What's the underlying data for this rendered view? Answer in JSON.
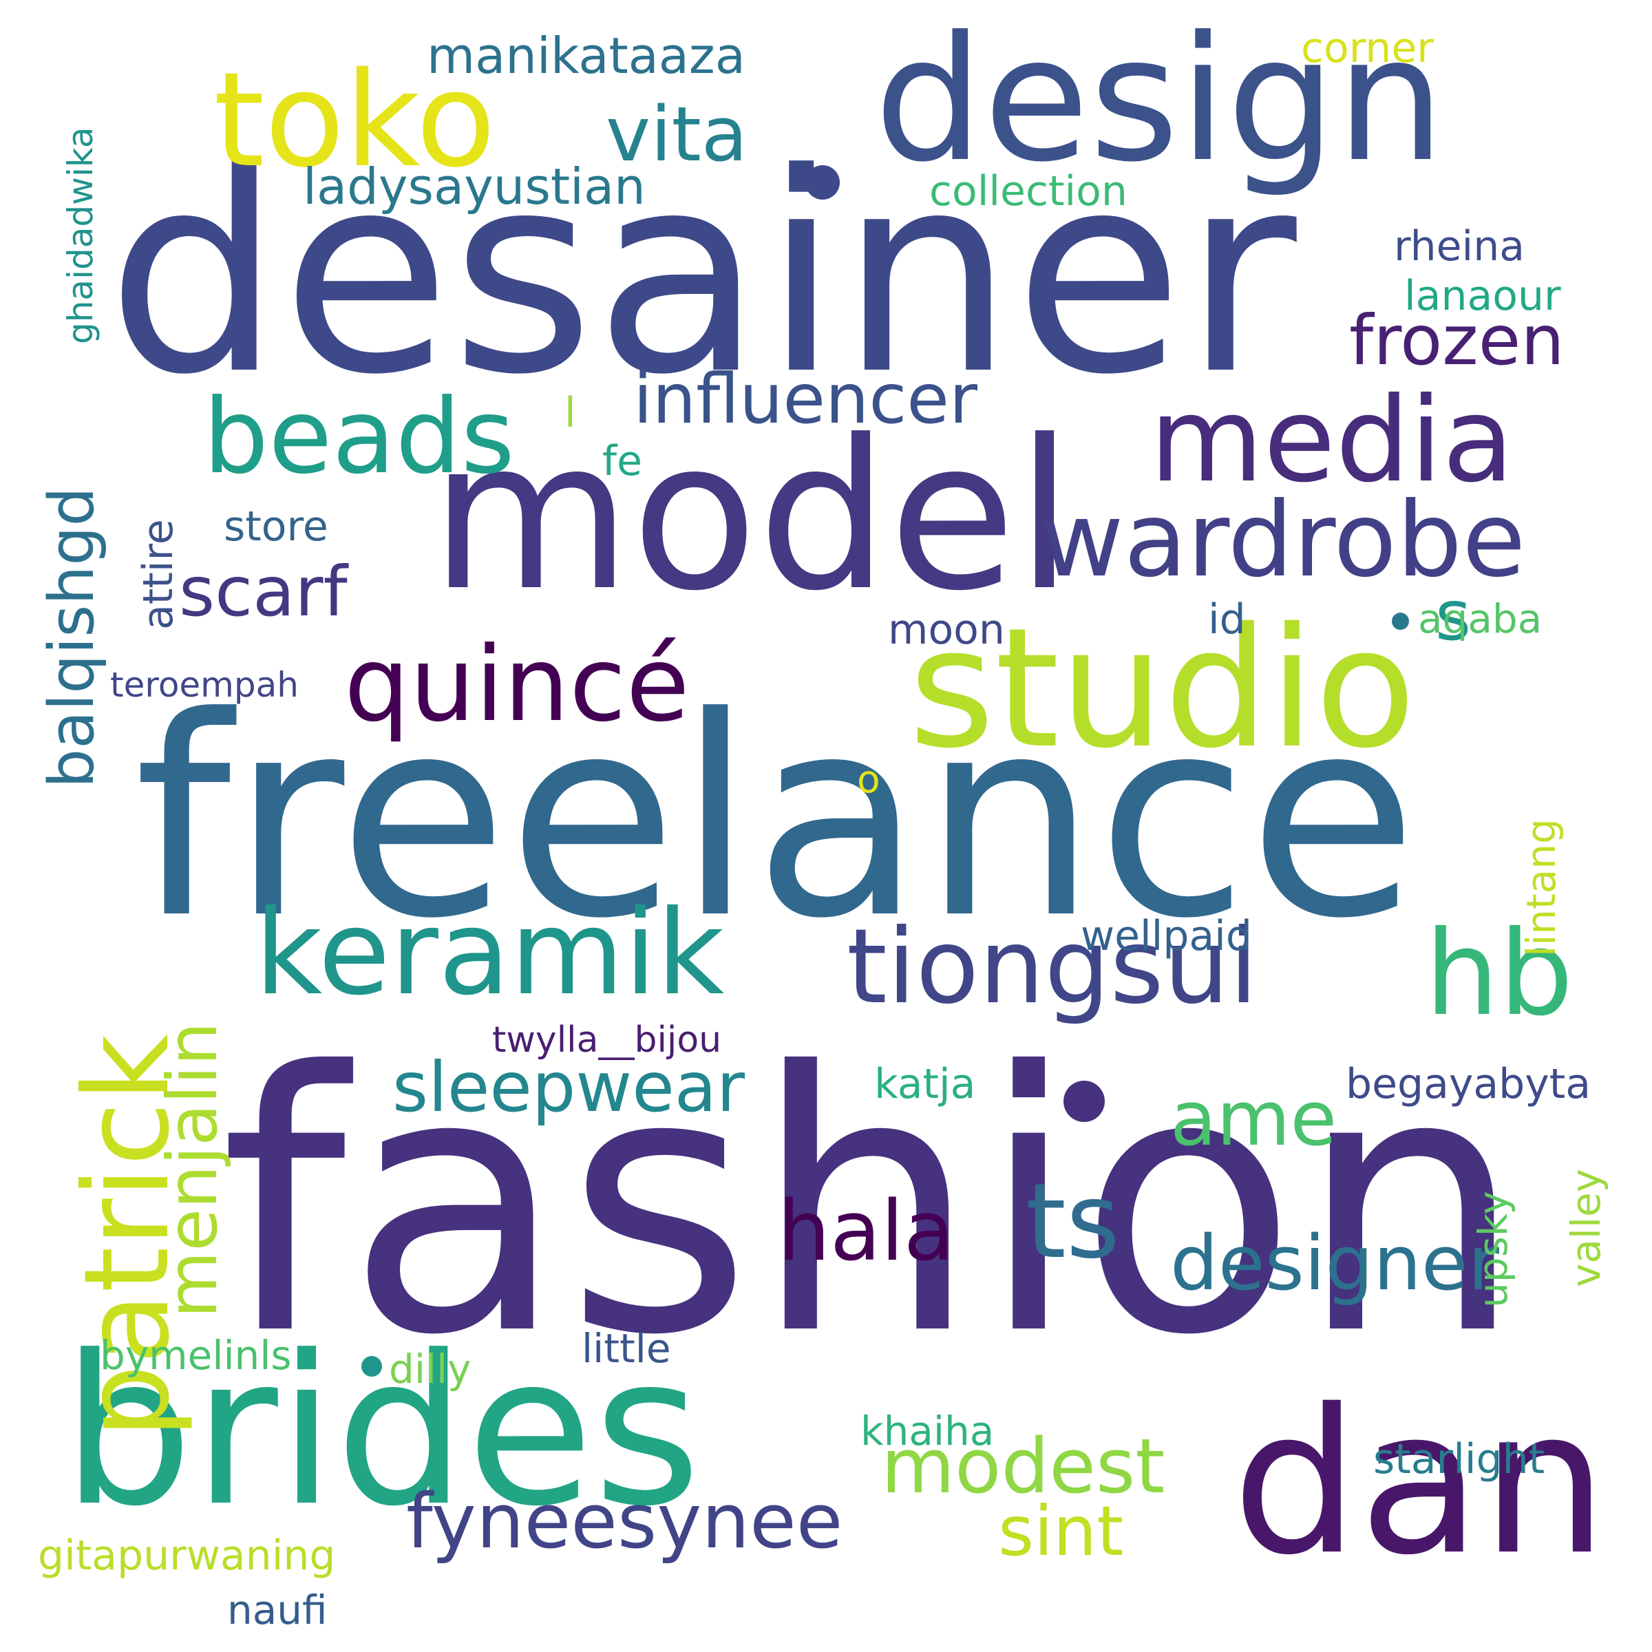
{
  "words": [
    {
      "text": "fashion",
      "color": "#46327e"
    },
    {
      "text": "desainer",
      "color": "#3e4989"
    },
    {
      "text": "freelance",
      "color": "#31688e"
    },
    {
      "text": "design",
      "color": "#3b528b"
    },
    {
      "text": "model",
      "color": "#443983"
    },
    {
      "text": "brides",
      "color": "#21a585"
    },
    {
      "text": "dan",
      "color": "#481769"
    },
    {
      "text": "studio",
      "color": "#b5de2b"
    },
    {
      "text": "toko",
      "color": "#e5e419"
    },
    {
      "text": "media",
      "color": "#472d7b"
    },
    {
      "text": "wardrobe",
      "color": "#424086"
    },
    {
      "text": "keramik",
      "color": "#1f958b"
    },
    {
      "text": "tiongsui",
      "color": "#404688"
    },
    {
      "text": "hb",
      "color": "#35b779"
    },
    {
      "text": "beads",
      "color": "#1f9e89"
    },
    {
      "text": "quincé",
      "color": "#440154"
    },
    {
      "text": "patrick",
      "color": "#c8e020"
    },
    {
      "text": "vita",
      "color": "#26828e"
    },
    {
      "text": "influencer",
      "color": "#3b528b"
    },
    {
      "text": "frozen",
      "color": "#482173"
    },
    {
      "text": "scarf",
      "color": "#453781"
    },
    {
      "text": "ladysayustian",
      "color": "#2a788e"
    },
    {
      "text": "manikataaza",
      "color": "#2c728e"
    },
    {
      "text": "menjalin",
      "color": "#addc30"
    },
    {
      "text": "balqishgd",
      "color": "#2d708e"
    },
    {
      "text": "sleepwear",
      "color": "#24868e"
    },
    {
      "text": "ame",
      "color": "#4ac16d"
    },
    {
      "text": "hala",
      "color": "#440154"
    },
    {
      "text": "ts",
      "color": "#2f6c8e"
    },
    {
      "text": "designer",
      "color": "#2c728e"
    },
    {
      "text": "modest",
      "color": "#8fd744"
    },
    {
      "text": "fyneesynee",
      "color": "#414487"
    },
    {
      "text": "sint",
      "color": "#c2df23"
    },
    {
      "text": "s",
      "color": "#1f968b"
    },
    {
      "text": "attire",
      "color": "#3b528b"
    },
    {
      "text": "collection",
      "color": "#3bbb75"
    },
    {
      "text": "corner",
      "color": "#d8e219"
    },
    {
      "text": "ghaidadwika",
      "color": "#20928c"
    },
    {
      "text": "rheina",
      "color": "#3e4c8a"
    },
    {
      "text": "lanaour",
      "color": "#22a884"
    },
    {
      "text": "l",
      "color": "#9fda3a"
    },
    {
      "text": "fe",
      "color": "#22a884"
    },
    {
      "text": "store",
      "color": "#33638d"
    },
    {
      "text": "moon",
      "color": "#3f4889"
    },
    {
      "text": "id",
      "color": "#355f8d"
    },
    {
      "text": "aqaba",
      "color": "#54c568"
    },
    {
      "text": "teroempah",
      "color": "#404688"
    },
    {
      "text": "o",
      "color": "#e5e419"
    },
    {
      "text": "lintang",
      "color": "#c0df25"
    },
    {
      "text": "wellpaid",
      "color": "#34618d"
    },
    {
      "text": "twylla__bijou",
      "color": "#481f70"
    },
    {
      "text": "katja",
      "color": "#2ab07f"
    },
    {
      "text": "begayabyta",
      "color": "#3e4a89"
    },
    {
      "text": "valley",
      "color": "#9dd93b"
    },
    {
      "text": "upsky",
      "color": "#5ec962"
    },
    {
      "text": "bymelinls",
      "color": "#4ac16d"
    },
    {
      "text": "dilly",
      "color": "#7ad151"
    },
    {
      "text": "little",
      "color": "#3a548c"
    },
    {
      "text": "khaiha",
      "color": "#2eb37c"
    },
    {
      "text": "starlight",
      "color": "#287d8e"
    },
    {
      "text": "gitapurwaning",
      "color": "#b8de29"
    },
    {
      "text": "naufi",
      "color": "#365c8d"
    }
  ],
  "dots": [
    {
      "color": "#3e4989"
    },
    {
      "color": "#46327e"
    },
    {
      "color": "#1f968b"
    },
    {
      "color": "#2a788e"
    },
    {
      "color": "#b5de2b"
    }
  ]
}
